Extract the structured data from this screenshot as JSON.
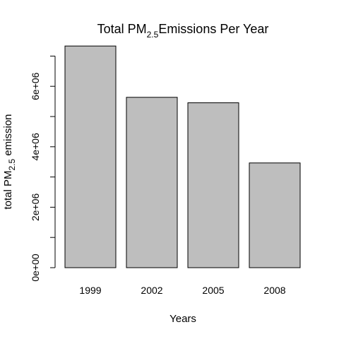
{
  "chart_data": {
    "type": "bar",
    "title": {
      "prefix": "Total PM",
      "subscript": "2.5",
      "suffix": "Emissions Per Year"
    },
    "xlabel": "Years",
    "ylabel": {
      "prefix": "total PM",
      "subscript": "2.5",
      "suffix": " emission"
    },
    "categories": [
      "1999",
      "2002",
      "2005",
      "2008"
    ],
    "values": [
      7332967,
      5635780,
      5454703,
      3464206
    ],
    "ylim": [
      0,
      7500000
    ],
    "y_ticks": [
      {
        "value": 0,
        "label": "0e+00"
      },
      {
        "value": 2000000,
        "label": "2e+06"
      },
      {
        "value": 4000000,
        "label": "4e+06"
      },
      {
        "value": 6000000,
        "label": "6e+06"
      }
    ],
    "bar_color": "#bebebe",
    "bar_border": "#000000",
    "grid": false,
    "legend": "none"
  }
}
